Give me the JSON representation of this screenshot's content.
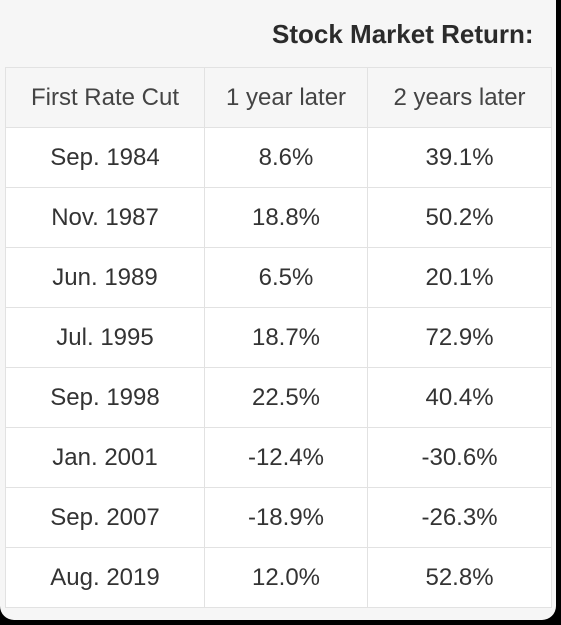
{
  "chart_data": {
    "type": "table",
    "title": "Stock Market Return:",
    "columns": [
      "First Rate Cut",
      "1 year later",
      "2 years later"
    ],
    "rows": [
      [
        "Sep. 1984",
        "8.6%",
        "39.1%"
      ],
      [
        "Nov. 1987",
        "18.8%",
        "50.2%"
      ],
      [
        "Jun. 1989",
        "6.5%",
        "20.1%"
      ],
      [
        "Jul. 1995",
        "18.7%",
        "72.9%"
      ],
      [
        "Sep. 1998",
        "22.5%",
        "40.4%"
      ],
      [
        "Jan. 2001",
        "-12.4%",
        "-30.6%"
      ],
      [
        "Sep. 2007",
        "-18.9%",
        "-26.3%"
      ],
      [
        "Aug. 2019",
        "12.0%",
        "52.8%"
      ]
    ]
  }
}
